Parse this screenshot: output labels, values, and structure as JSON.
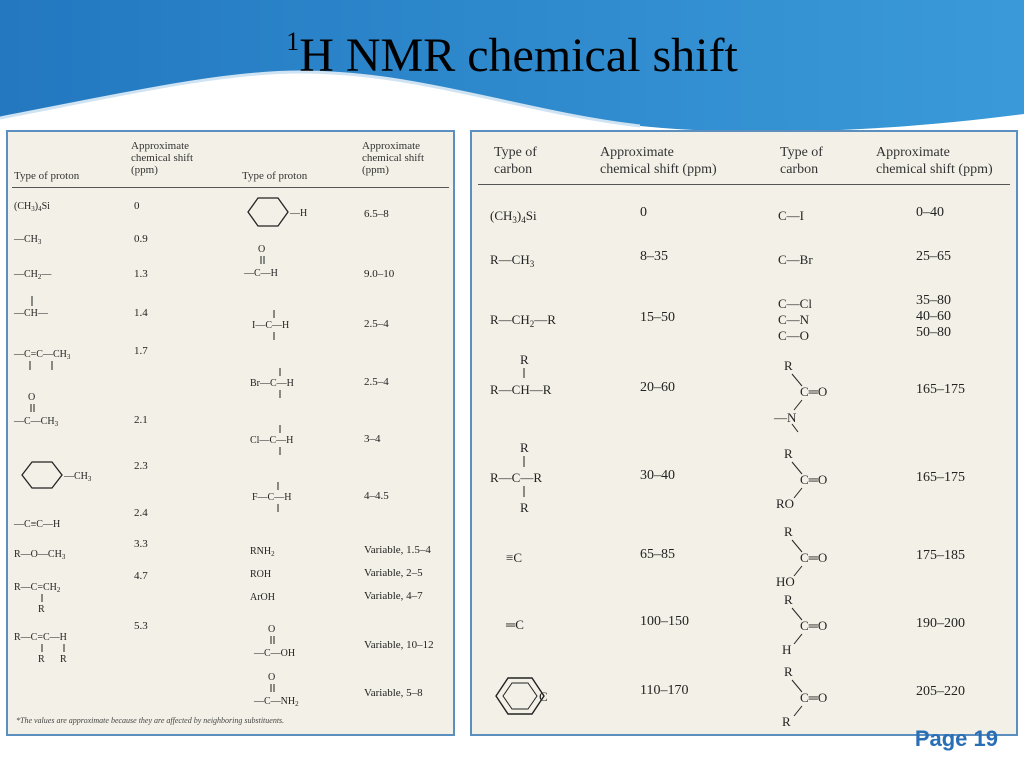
{
  "slide": {
    "title_sup": "1",
    "title_main": "H NMR chemical shift",
    "page_label": "Page 19",
    "accent_color": "#2d84c8"
  },
  "proton_table": {
    "headers": {
      "type": "Type of proton",
      "shift_line1": "Approximate",
      "shift_line2": "chemical shift",
      "shift_line3": "(ppm)"
    },
    "left_rows": [
      {
        "group": "(CH3)4Si",
        "shift": "0"
      },
      {
        "group": "—CH3",
        "shift": "0.9"
      },
      {
        "group": "—CH2—",
        "shift": "1.3"
      },
      {
        "group": "—CH—",
        "shift": "1.4"
      },
      {
        "group": "—C=C—CH3",
        "shift": "1.7"
      },
      {
        "group": "—C(=O)—CH3",
        "shift": "2.1"
      },
      {
        "group": "C6H5—CH3",
        "shift": "2.3"
      },
      {
        "group": "—C≡C—H",
        "shift": "2.4"
      },
      {
        "group": "R—O—CH3",
        "shift": "3.3"
      },
      {
        "group": "R—C=CH2",
        "shift": "4.7"
      },
      {
        "group": "R—C=C—H",
        "shift": "5.3"
      }
    ],
    "right_rows": [
      {
        "group": "C6H5—H",
        "shift": "6.5–8"
      },
      {
        "group": "—C(=O)—H",
        "shift": "9.0–10"
      },
      {
        "group": "I—C—H",
        "shift": "2.5–4"
      },
      {
        "group": "Br—C—H",
        "shift": "2.5–4"
      },
      {
        "group": "Cl—C—H",
        "shift": "3–4"
      },
      {
        "group": "F—C—H",
        "shift": "4–4.5"
      },
      {
        "group": "RNH2",
        "shift": "Variable, 1.5–4"
      },
      {
        "group": "ROH",
        "shift": "Variable, 2–5"
      },
      {
        "group": "ArOH",
        "shift": "Variable, 4–7"
      },
      {
        "group": "—C(=O)—OH",
        "shift": "Variable, 10–12"
      },
      {
        "group": "—C(=O)—NH2",
        "shift": "Variable, 5–8"
      }
    ],
    "footnote": "*The values are approximate because they are affected by neighboring substituents."
  },
  "carbon_table": {
    "headers": {
      "type_line1": "Type of",
      "type_line2": "carbon",
      "shift_line1": "Approximate",
      "shift_line2": "chemical shift (ppm)"
    },
    "left_rows": [
      {
        "group": "(CH3)4Si",
        "shift": "0"
      },
      {
        "group": "R—CH3",
        "shift": "8–35"
      },
      {
        "group": "R—CH2—R",
        "shift": "15–50"
      },
      {
        "group": "R—CH(R)—R",
        "shift": "20–60"
      },
      {
        "group": "R—C(R)(R)—R",
        "shift": "30–40"
      },
      {
        "group": "≡C",
        "shift": "65–85"
      },
      {
        "group": "=C",
        "shift": "100–150"
      },
      {
        "group": "aromatic C",
        "shift": "110–170"
      }
    ],
    "right_rows": [
      {
        "group": "C—I",
        "shift": "0–40"
      },
      {
        "group": "C—Br",
        "shift": "25–65"
      },
      {
        "group": "C—Cl / C—N / C—O",
        "shift_a": "35–80",
        "shift_b": "40–60",
        "shift_c": "50–80"
      },
      {
        "group": "amide C=O",
        "shift": "165–175"
      },
      {
        "group": "ester C=O",
        "shift": "165–175"
      },
      {
        "group": "acid C=O",
        "shift": "175–185"
      },
      {
        "group": "aldehyde C=O",
        "shift": "190–200"
      },
      {
        "group": "ketone C=O",
        "shift": "205–220"
      }
    ]
  }
}
